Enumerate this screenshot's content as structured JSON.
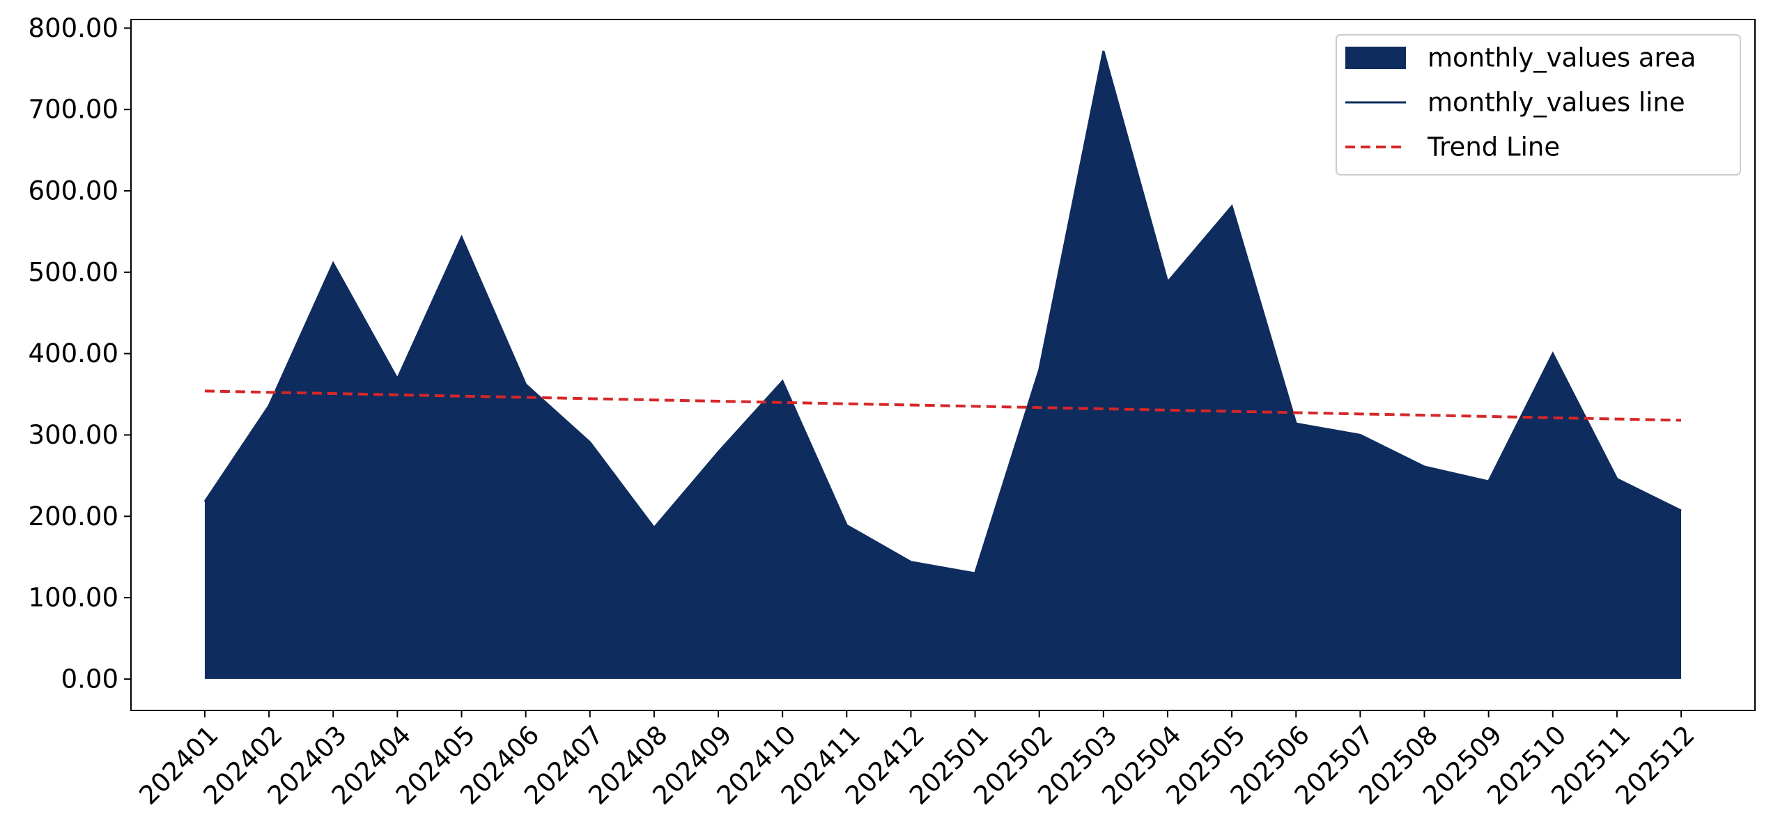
{
  "chart_data": {
    "type": "area",
    "categories": [
      "202401",
      "202402",
      "202403",
      "202404",
      "202405",
      "202406",
      "202407",
      "202408",
      "202409",
      "202410",
      "202411",
      "202412",
      "202501",
      "202502",
      "202503",
      "202504",
      "202505",
      "202506",
      "202507",
      "202508",
      "202509",
      "202510",
      "202511",
      "202512"
    ],
    "series": [
      {
        "name": "monthly_values area",
        "kind": "area",
        "color": "#0e2c5e",
        "values": [
          218,
          336,
          511,
          369,
          543,
          362,
          291,
          186,
          279,
          366,
          189,
          144,
          130,
          380,
          772,
          488,
          581,
          314,
          300,
          261,
          243,
          400,
          246,
          207
        ]
      },
      {
        "name": "monthly_values line",
        "kind": "line",
        "color": "#0e2c5e",
        "values": [
          218,
          336,
          511,
          369,
          543,
          362,
          291,
          186,
          279,
          366,
          189,
          144,
          130,
          380,
          772,
          488,
          581,
          314,
          300,
          261,
          243,
          400,
          246,
          207
        ]
      },
      {
        "name": "Trend Line",
        "kind": "line",
        "dashed": true,
        "color": "#d62728",
        "values": [
          354,
          352.4,
          350.9,
          349.3,
          347.7,
          346.2,
          344.6,
          343.0,
          341.5,
          339.9,
          338.3,
          336.8,
          335.2,
          333.7,
          332.1,
          330.5,
          329.0,
          327.4,
          325.8,
          324.3,
          322.7,
          321.1,
          319.6,
          318.0
        ]
      }
    ],
    "ylim": [
      -38.6,
      810.6
    ],
    "yticks": [
      {
        "value": 0,
        "label": "0.00"
      },
      {
        "value": 100,
        "label": "100.00"
      },
      {
        "value": 200,
        "label": "200.00"
      },
      {
        "value": 300,
        "label": "300.00"
      },
      {
        "value": 400,
        "label": "400.00"
      },
      {
        "value": 500,
        "label": "500.00"
      },
      {
        "value": 600,
        "label": "600.00"
      },
      {
        "value": 700,
        "label": "700.00"
      },
      {
        "value": 800,
        "label": "800.00"
      }
    ],
    "legend": "upper right",
    "grid": false
  }
}
